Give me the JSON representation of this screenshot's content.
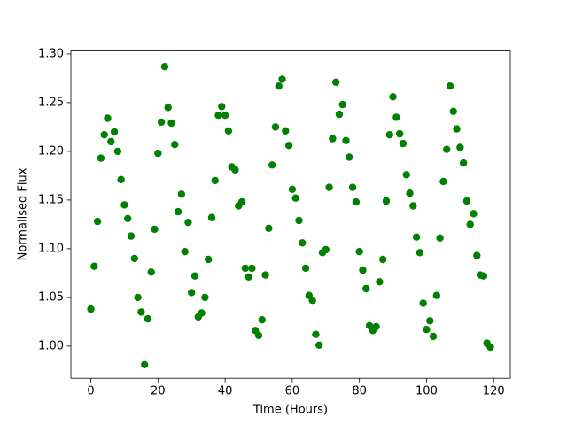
{
  "chart_data": {
    "type": "scatter",
    "xlabel": "Time (Hours)",
    "ylabel": "Normalised Flux",
    "color": "#008000",
    "x": [
      0,
      1,
      2,
      3,
      4,
      5,
      6,
      7,
      8,
      9,
      10,
      11,
      12,
      13,
      14,
      15,
      16,
      17,
      18,
      19,
      20,
      21,
      22,
      23,
      24,
      25,
      26,
      27,
      28,
      29,
      30,
      31,
      32,
      33,
      34,
      35,
      36,
      37,
      38,
      39,
      40,
      41,
      42,
      43,
      44,
      45,
      46,
      47,
      48,
      49,
      50,
      51,
      52,
      53,
      54,
      55,
      56,
      57,
      58,
      59,
      60,
      61,
      62,
      63,
      64,
      65,
      66,
      67,
      68,
      69,
      70,
      71,
      72,
      73,
      74,
      75,
      76,
      77,
      78,
      79,
      80,
      81,
      82,
      83,
      84,
      85,
      86,
      87,
      88,
      89,
      90,
      91,
      92,
      93,
      94,
      95,
      96,
      97,
      98,
      99,
      100,
      101,
      102,
      103,
      104,
      105,
      106,
      107,
      108,
      109,
      110,
      111,
      112,
      113,
      114,
      115,
      116,
      117,
      118,
      119
    ],
    "values": [
      1.038,
      1.082,
      1.128,
      1.193,
      1.217,
      1.234,
      1.21,
      1.22,
      1.2,
      1.171,
      1.145,
      1.131,
      1.113,
      1.09,
      1.05,
      1.035,
      0.981,
      1.028,
      1.076,
      1.12,
      1.198,
      1.23,
      1.287,
      1.245,
      1.229,
      1.207,
      1.138,
      1.156,
      1.097,
      1.127,
      1.055,
      1.072,
      1.03,
      1.034,
      1.05,
      1.089,
      1.132,
      1.17,
      1.237,
      1.246,
      1.237,
      1.221,
      1.184,
      1.181,
      1.144,
      1.148,
      1.08,
      1.071,
      1.08,
      1.016,
      1.011,
      1.027,
      1.073,
      1.121,
      1.186,
      1.225,
      1.267,
      1.274,
      1.221,
      1.206,
      1.161,
      1.152,
      1.129,
      1.106,
      1.08,
      1.052,
      1.047,
      1.012,
      1.001,
      1.096,
      1.099,
      1.163,
      1.213,
      1.271,
      1.238,
      1.248,
      1.211,
      1.194,
      1.163,
      1.148,
      1.097,
      1.078,
      1.059,
      1.021,
      1.016,
      1.02,
      1.066,
      1.089,
      1.149,
      1.217,
      1.256,
      1.235,
      1.218,
      1.208,
      1.176,
      1.157,
      1.144,
      1.112,
      1.096,
      1.044,
      1.017,
      1.026,
      1.01,
      1.052,
      1.111,
      1.169,
      1.202,
      1.267,
      1.241,
      1.223,
      1.204,
      1.188,
      1.149,
      1.125,
      1.136,
      1.093,
      1.073,
      1.072,
      1.003,
      0.999
    ],
    "xlim": [
      -5.95,
      124.95
    ],
    "xticks": [
      0,
      20,
      40,
      60,
      80,
      100,
      120
    ],
    "ylim": [
      0.967,
      1.303
    ],
    "yticks": [
      {
        "value": 1,
        "label": "1.00"
      },
      1.05,
      {
        "value": 1.1,
        "label": "1.10"
      },
      1.15,
      {
        "value": 1.2,
        "label": "1.20"
      },
      1.25,
      {
        "value": 1.3,
        "label": "1.30"
      }
    ]
  }
}
